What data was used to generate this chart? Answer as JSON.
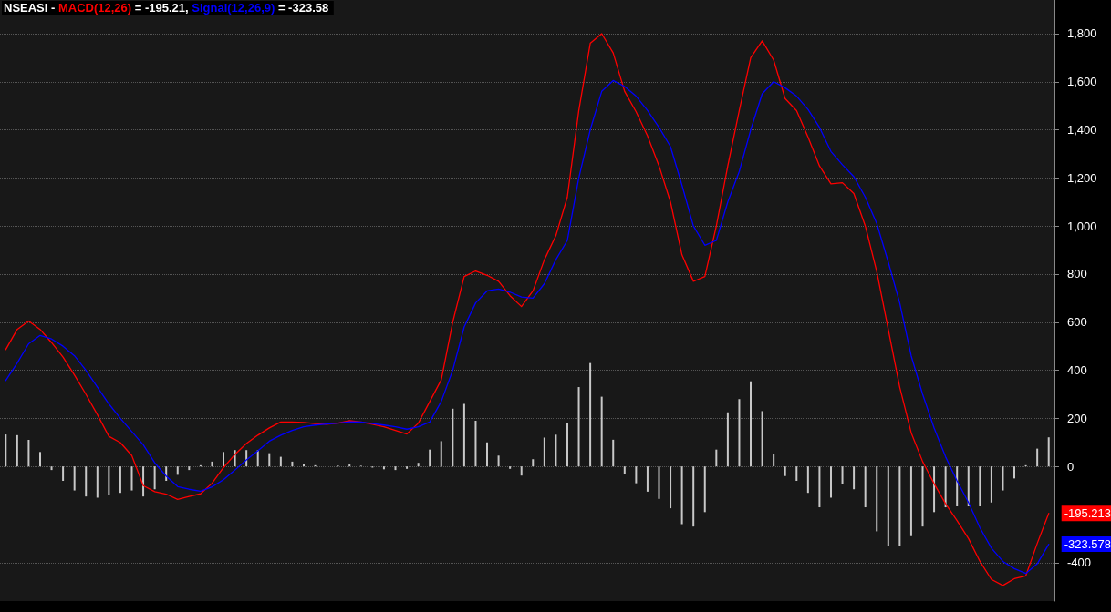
{
  "chart_data": {
    "type": "line",
    "title": "NSEASI -",
    "annotations": [
      "= -195.21,",
      "= -323.58"
    ],
    "categories": [
      null,
      null,
      null,
      null,
      null,
      null,
      null,
      null,
      null,
      null,
      null,
      null,
      null,
      null,
      null,
      null,
      null,
      null,
      null,
      null,
      null,
      null,
      null,
      null,
      null,
      null,
      null,
      null,
      null,
      null,
      null,
      null,
      null,
      null,
      null,
      null,
      null,
      null,
      null,
      null,
      null,
      null,
      null,
      null,
      null,
      null,
      null,
      null,
      null,
      null,
      null,
      null,
      null,
      null,
      null,
      null,
      null,
      null,
      null,
      null,
      null,
      null,
      null,
      null,
      null,
      null,
      null,
      null,
      null,
      null,
      null,
      null,
      null,
      null,
      null,
      null,
      null,
      null,
      null,
      null,
      null,
      null,
      null,
      null,
      null,
      null,
      null,
      null,
      null,
      null,
      null,
      null
    ],
    "series": [
      {
        "name": "MACD(12,26)",
        "color": "#ff0000",
        "values": [
          486,
          570,
          605,
          570,
          515,
          455,
          380,
          300,
          215,
          125,
          99,
          45,
          -80,
          -105,
          -115,
          -137,
          -125,
          -114,
          -70,
          -5,
          50,
          95,
          130,
          160,
          185,
          185,
          183,
          178,
          175,
          180,
          190,
          185,
          175,
          165,
          150,
          135,
          180,
          270,
          360,
          600,
          790,
          813,
          795,
          770,
          710,
          665,
          730,
          860,
          960,
          1120,
          1480,
          1760,
          1800,
          1720,
          1560,
          1475,
          1375,
          1250,
          1100,
          880,
          770,
          790,
          1000,
          1250,
          1480,
          1700,
          1770,
          1690,
          1530,
          1480,
          1370,
          1250,
          1175,
          1180,
          1135,
          1000,
          810,
          570,
          330,
          140,
          20,
          -72,
          -155,
          -225,
          -300,
          -395,
          -470,
          -495,
          -467,
          -455,
          -320,
          -195.213
        ],
        "value_labels": [
          null,
          null,
          null,
          null,
          null,
          null,
          null,
          null,
          null,
          null,
          null,
          null,
          null,
          null,
          null,
          null,
          null,
          null,
          null,
          null,
          null,
          null,
          null,
          null,
          null,
          null,
          null,
          null,
          null,
          null,
          null,
          null,
          null,
          null,
          null,
          null,
          null,
          null,
          null,
          null,
          null,
          null,
          null,
          null,
          null,
          null,
          null,
          null,
          null,
          null,
          null,
          null,
          null,
          null,
          null,
          null,
          null,
          null,
          null,
          null,
          null,
          null,
          null,
          null,
          null,
          null,
          null,
          null,
          null,
          null,
          null,
          null,
          null,
          null,
          null,
          null,
          null,
          null,
          null,
          null,
          null,
          null,
          null,
          null,
          null,
          null,
          null,
          null,
          null,
          null,
          null,
          "-195.213"
        ]
      },
      {
        "name": "Signal(12,26,9)",
        "color": "#0000ff",
        "values": [
          357,
          430,
          510,
          545,
          530,
          500,
          460,
          400,
          330,
          260,
          200,
          145,
          90,
          15,
          -40,
          -84,
          -95,
          -103,
          -85,
          -55,
          -15,
          27,
          65,
          105,
          130,
          150,
          165,
          172,
          176,
          180,
          186,
          185,
          178,
          172,
          165,
          155,
          165,
          185,
          270,
          400,
          580,
          680,
          730,
          738,
          725,
          705,
          700,
          760,
          860,
          940,
          1200,
          1400,
          1560,
          1605,
          1580,
          1540,
          1480,
          1410,
          1330,
          1170,
          1000,
          920,
          940,
          1100,
          1227,
          1400,
          1550,
          1600,
          1575,
          1540,
          1485,
          1410,
          1310,
          1255,
          1205,
          1120,
          1010,
          850,
          680,
          460,
          300,
          160,
          40,
          -60,
          -150,
          -255,
          -340,
          -395,
          -425,
          -445,
          -405,
          -323.578
        ],
        "value_labels": [
          null,
          null,
          null,
          null,
          null,
          null,
          null,
          null,
          null,
          null,
          null,
          null,
          null,
          null,
          null,
          null,
          null,
          null,
          null,
          null,
          null,
          null,
          null,
          null,
          null,
          null,
          null,
          null,
          null,
          null,
          null,
          null,
          null,
          null,
          null,
          null,
          null,
          null,
          null,
          null,
          null,
          null,
          null,
          null,
          null,
          null,
          null,
          null,
          null,
          null,
          null,
          null,
          null,
          null,
          null,
          null,
          null,
          null,
          null,
          null,
          null,
          null,
          null,
          null,
          null,
          null,
          null,
          null,
          null,
          null,
          null,
          null,
          null,
          null,
          null,
          null,
          null,
          null,
          null,
          null,
          null,
          null,
          null,
          null,
          null,
          null,
          null,
          null,
          null,
          null,
          null,
          "-323.578"
        ]
      },
      {
        "type": "bar",
        "color": "#c8c8c8",
        "values": [
          133,
          130,
          110,
          60,
          -15,
          -60,
          -100,
          -125,
          -130,
          -120,
          -110,
          -100,
          -125,
          -95,
          -60,
          -35,
          -15,
          5,
          20,
          60,
          68,
          68,
          68,
          55,
          40,
          20,
          10,
          5,
          0,
          3,
          8,
          3,
          -5,
          -12,
          -15,
          -10,
          15,
          70,
          105,
          240,
          260,
          190,
          100,
          45,
          -10,
          -38,
          30,
          120,
          132,
          180,
          330,
          430,
          290,
          111,
          -30,
          -70,
          -105,
          -135,
          -174,
          -240,
          -250,
          -190,
          70,
          225,
          280,
          354,
          230,
          50,
          -40,
          -60,
          -110,
          -170,
          -130,
          -75,
          -95,
          -170,
          -270,
          -330,
          -330,
          -290,
          -250,
          -190,
          -170,
          -166,
          -166,
          -166,
          -150,
          -100,
          -50,
          5,
          74,
          121
        ]
      }
    ],
    "ylim": [
      -560,
      1940
    ],
    "yticks": [
      -400,
      {
        "value": -200,
        "label": null
      },
      0,
      200,
      400,
      600,
      800,
      {
        "value": 1000,
        "label": "1,000"
      },
      {
        "value": 1200,
        "label": "1,200"
      },
      {
        "value": 1400,
        "label": "1,400"
      },
      {
        "value": 1600,
        "label": "1,600"
      },
      {
        "value": 1800,
        "label": "1,800"
      }
    ],
    "grid": "y",
    "tick_labels": "y",
    "line_style": "solid",
    "marker": "none"
  }
}
